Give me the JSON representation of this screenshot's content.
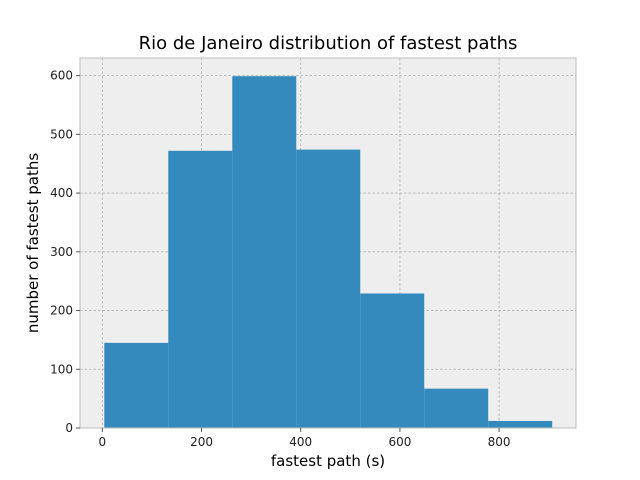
{
  "chart_data": {
    "type": "bar",
    "subtype": "histogram",
    "title": "Rio de Janeiro distribution of fastest paths",
    "xlabel": "fastest path (s)",
    "ylabel": "number of fastest paths",
    "bins": [
      {
        "start": 4,
        "end": 133,
        "count": 145
      },
      {
        "start": 133,
        "end": 262,
        "count": 472
      },
      {
        "start": 262,
        "end": 391,
        "count": 599
      },
      {
        "start": 391,
        "end": 520,
        "count": 474
      },
      {
        "start": 520,
        "end": 649,
        "count": 229
      },
      {
        "start": 649,
        "end": 778,
        "count": 67
      },
      {
        "start": 778,
        "end": 907,
        "count": 12
      }
    ],
    "xlim": [
      -45,
      955
    ],
    "ylim": [
      0,
      630
    ],
    "xticks": [
      0,
      200,
      400,
      600,
      800
    ],
    "yticks": [
      0,
      100,
      200,
      300,
      400,
      500,
      600
    ],
    "grid": true,
    "colors": {
      "bar": "#348abd",
      "background": "#eeeeee"
    }
  }
}
